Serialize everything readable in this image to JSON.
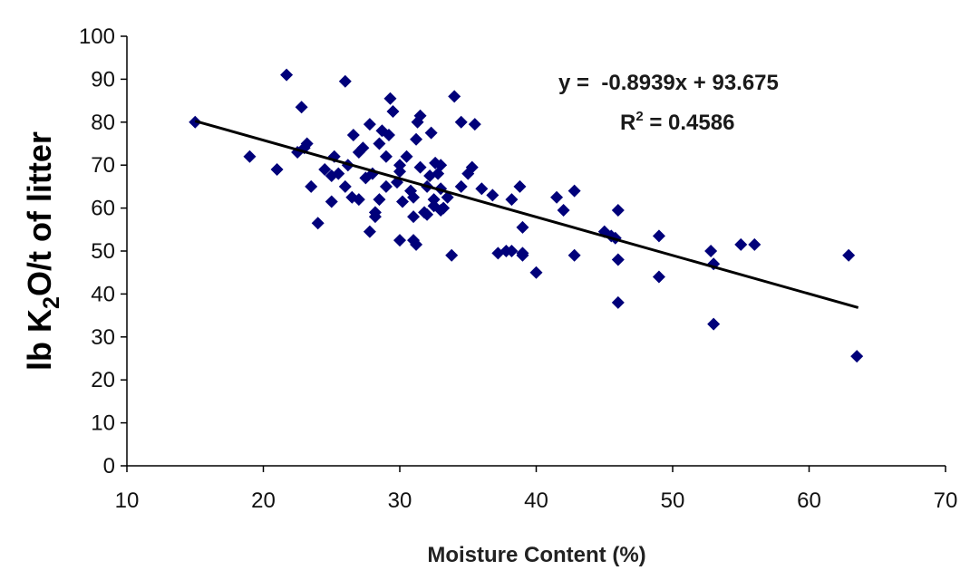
{
  "chart_data": {
    "type": "scatter",
    "xlabel": "Moisture Content (%)",
    "ylabel_parts": [
      "lb K",
      "2",
      "O/t of litter"
    ],
    "xlim": [
      10,
      70
    ],
    "ylim": [
      0,
      100
    ],
    "x_ticks": [
      "10",
      "20",
      "30",
      "40",
      "50",
      "60",
      "70"
    ],
    "y_ticks": [
      "0",
      "10",
      "20",
      "30",
      "40",
      "50",
      "60",
      "70",
      "80",
      "90",
      "100"
    ],
    "grid": false,
    "marker": "diamond",
    "marker_color": "#00007a",
    "trendline": {
      "slope": -0.8939,
      "intercept": 93.675,
      "x_range": [
        15,
        63.6
      ],
      "color": "#000000",
      "equation_label": "y =  -0.8939x + 93.675",
      "r2_label_parts": [
        "R",
        "2",
        " = 0.4586"
      ]
    },
    "points": [
      [
        15,
        80
      ],
      [
        19,
        72
      ],
      [
        21,
        69
      ],
      [
        21.7,
        91
      ],
      [
        22.5,
        73
      ],
      [
        22.8,
        83.5
      ],
      [
        23,
        74
      ],
      [
        23.2,
        75
      ],
      [
        23.5,
        65
      ],
      [
        24,
        56.5
      ],
      [
        24.5,
        69
      ],
      [
        25,
        67.5
      ],
      [
        25,
        61.5
      ],
      [
        25.2,
        72
      ],
      [
        25.5,
        68
      ],
      [
        26,
        89.5
      ],
      [
        26,
        65
      ],
      [
        26.2,
        70
      ],
      [
        26.5,
        62.5
      ],
      [
        26.6,
        77
      ],
      [
        27,
        62
      ],
      [
        27,
        73
      ],
      [
        27.3,
        74
      ],
      [
        27.5,
        67
      ],
      [
        27.8,
        79.5
      ],
      [
        27.8,
        54.5
      ],
      [
        28,
        68
      ],
      [
        28.2,
        59
      ],
      [
        28.2,
        58
      ],
      [
        28.5,
        75
      ],
      [
        28.5,
        62
      ],
      [
        28.7,
        78
      ],
      [
        29,
        72
      ],
      [
        29,
        65
      ],
      [
        29.2,
        77
      ],
      [
        29.3,
        85.5
      ],
      [
        29.5,
        82.5
      ],
      [
        29.8,
        66
      ],
      [
        30,
        70
      ],
      [
        30,
        68.5
      ],
      [
        30,
        52.5
      ],
      [
        30.2,
        61.5
      ],
      [
        30.5,
        72
      ],
      [
        30.8,
        64
      ],
      [
        31,
        62.5
      ],
      [
        31,
        58
      ],
      [
        31,
        52.5
      ],
      [
        31.2,
        51.5
      ],
      [
        31.2,
        76
      ],
      [
        31.3,
        80
      ],
      [
        31.5,
        69.5
      ],
      [
        31.5,
        81.5
      ],
      [
        31.8,
        59
      ],
      [
        32,
        58.5
      ],
      [
        32,
        65
      ],
      [
        32.2,
        67.5
      ],
      [
        32.3,
        77.5
      ],
      [
        32.5,
        62
      ],
      [
        32.5,
        60.5
      ],
      [
        32.6,
        70.5
      ],
      [
        32.8,
        68
      ],
      [
        33,
        64.5
      ],
      [
        33,
        59.5
      ],
      [
        33,
        70
      ],
      [
        33.2,
        60
      ],
      [
        33.5,
        62.5
      ],
      [
        33.8,
        49
      ],
      [
        34,
        86
      ],
      [
        34.5,
        80
      ],
      [
        34.5,
        65
      ],
      [
        35,
        68
      ],
      [
        35.3,
        69.5
      ],
      [
        35.5,
        79.5
      ],
      [
        36,
        64.5
      ],
      [
        36.8,
        63
      ],
      [
        37.2,
        49.5
      ],
      [
        37.8,
        50
      ],
      [
        38.2,
        62
      ],
      [
        38.2,
        50
      ],
      [
        38.8,
        65
      ],
      [
        39,
        49.5
      ],
      [
        39,
        49
      ],
      [
        39,
        55.5
      ],
      [
        40,
        45
      ],
      [
        41.5,
        62.5
      ],
      [
        42,
        59.5
      ],
      [
        42.8,
        64
      ],
      [
        42.8,
        49
      ],
      [
        45,
        54.5
      ],
      [
        45.5,
        53.5
      ],
      [
        45.8,
        53
      ],
      [
        46,
        48
      ],
      [
        46,
        59.5
      ],
      [
        46,
        38
      ],
      [
        49,
        53.5
      ],
      [
        49,
        44
      ],
      [
        52.8,
        50
      ],
      [
        53,
        47
      ],
      [
        53,
        33
      ],
      [
        55,
        51.5
      ],
      [
        56,
        51.5
      ],
      [
        62.9,
        49
      ],
      [
        63.5,
        25.5
      ]
    ]
  }
}
